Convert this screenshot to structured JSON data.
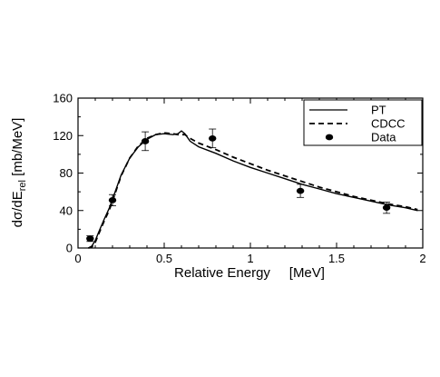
{
  "chart_data": {
    "type": "line",
    "title": "",
    "xlabel": "Relative Energy     [MeV]",
    "ylabel_main": "dσ/dE",
    "ylabel_sub": "rel",
    "ylabel_unit": "  [mb/MeV]",
    "xlim": [
      0,
      2
    ],
    "ylim": [
      0,
      160
    ],
    "x_ticks": [
      "0",
      "0.5",
      "1",
      "1.5",
      "2"
    ],
    "x_tick_values": [
      0,
      0.5,
      1,
      1.5,
      2
    ],
    "y_ticks": [
      "0",
      "40",
      "80",
      "120",
      "160"
    ],
    "y_tick_values": [
      0,
      40,
      80,
      120,
      160
    ],
    "grid": false,
    "legend_position": "top-right",
    "series": [
      {
        "name": "PT",
        "style": "solid",
        "x": [
          0.06,
          0.08,
          0.1,
          0.12,
          0.15,
          0.18,
          0.2,
          0.25,
          0.3,
          0.35,
          0.4,
          0.45,
          0.5,
          0.55,
          0.58,
          0.6,
          0.62,
          0.65,
          0.7,
          0.8,
          0.9,
          1.0,
          1.1,
          1.2,
          1.3,
          1.4,
          1.5,
          1.6,
          1.7,
          1.8,
          1.9,
          1.97
        ],
        "y": [
          0,
          2,
          8,
          17,
          30,
          42,
          52,
          78,
          96,
          108,
          116,
          121,
          122,
          121,
          122,
          125,
          122,
          114,
          108,
          101,
          93,
          86,
          80,
          74,
          68,
          63,
          58,
          54,
          50,
          46,
          43,
          40
        ]
      },
      {
        "name": "CDCC",
        "style": "dashed",
        "x": [
          0.06,
          0.08,
          0.1,
          0.12,
          0.15,
          0.18,
          0.2,
          0.25,
          0.3,
          0.35,
          0.4,
          0.45,
          0.5,
          0.55,
          0.58,
          0.6,
          0.62,
          0.65,
          0.7,
          0.8,
          0.9,
          1.0,
          1.1,
          1.2,
          1.3,
          1.4,
          1.5,
          1.6,
          1.7,
          1.8,
          1.9,
          1.97
        ],
        "y": [
          0,
          1,
          6,
          15,
          28,
          40,
          50,
          77,
          96,
          109,
          117,
          121,
          123,
          122,
          121,
          121,
          121,
          117,
          112,
          105,
          97,
          90,
          83,
          77,
          71,
          65,
          60,
          55,
          51,
          47,
          44,
          41
        ]
      },
      {
        "name": "Data",
        "style": "points",
        "x": [
          0.07,
          0.2,
          0.39,
          0.78,
          1.29,
          1.79
        ],
        "y": [
          10,
          51,
          114,
          117,
          61,
          43
        ],
        "err": [
          3,
          6,
          10,
          10,
          7,
          6
        ]
      }
    ]
  }
}
